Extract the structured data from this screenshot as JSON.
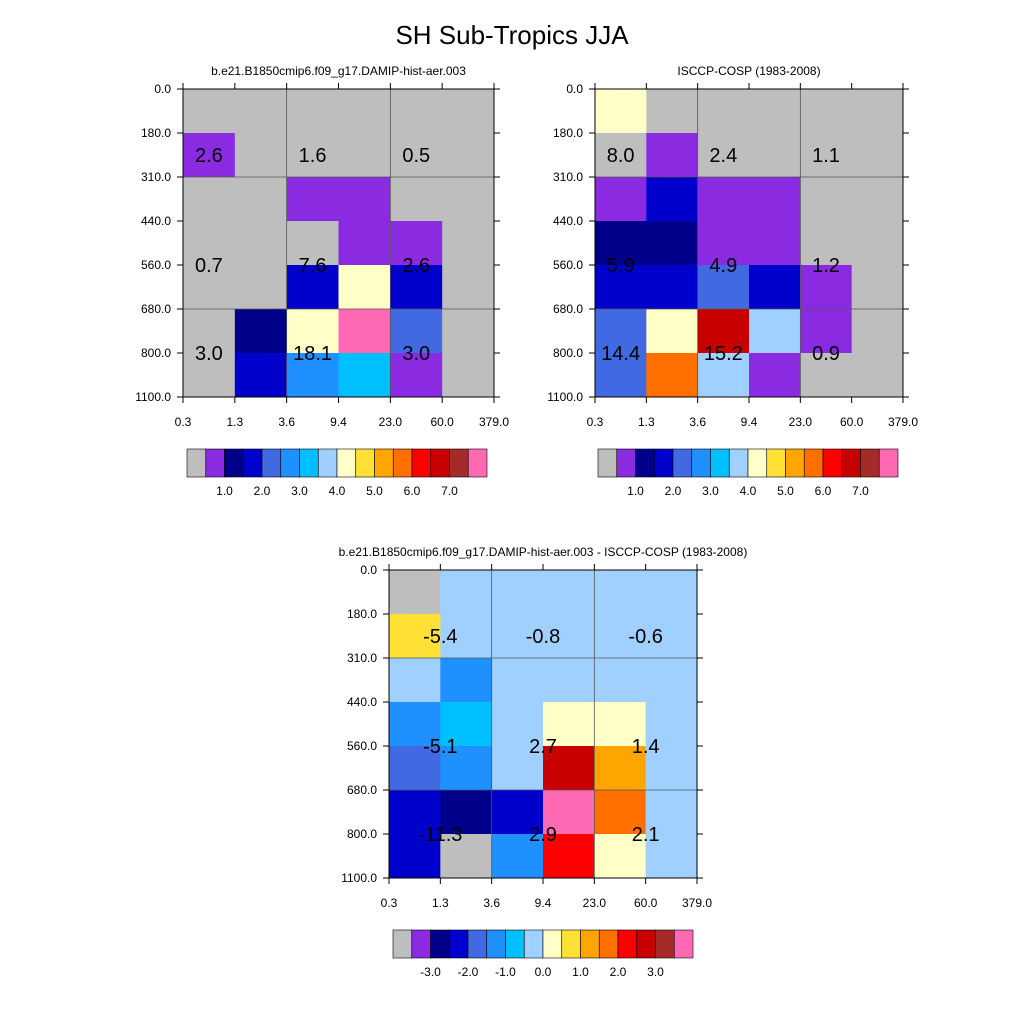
{
  "title": "SH Sub-Tropics JJA",
  "chart_data": [
    {
      "type": "heatmap",
      "title": "b.e21.B1850cmip6.f09_g17.DAMIP-hist-aer.003",
      "x_ticks": [
        "0.3",
        "1.3",
        "3.6",
        "9.4",
        "23.0",
        "60.0",
        "379.0"
      ],
      "y_ticks": [
        "0.0",
        "180.0",
        "310.0",
        "440.0",
        "560.0",
        "680.0",
        "800.0",
        "1100.0"
      ],
      "cell_colors": [
        [
          "#bebebe",
          "#bebebe",
          "#bebebe",
          "#bebebe",
          "#bebebe",
          "#bebebe"
        ],
        [
          "#8a2be2",
          "#bebebe",
          "#bebebe",
          "#bebebe",
          "#bebebe",
          "#bebebe"
        ],
        [
          "#bebebe",
          "#bebebe",
          "#8a2be2",
          "#8a2be2",
          "#bebebe",
          "#bebebe"
        ],
        [
          "#bebebe",
          "#bebebe",
          "#bebebe",
          "#8a2be2",
          "#8a2be2",
          "#bebebe"
        ],
        [
          "#bebebe",
          "#bebebe",
          "#0000cd",
          "#ffffc8",
          "#0000cd",
          "#bebebe"
        ],
        [
          "#bebebe",
          "#00008b",
          "#ffffc8",
          "#ff69b4",
          "#4169e1",
          "#bebebe"
        ],
        [
          "#bebebe",
          "#0000cd",
          "#1e90ff",
          "#00bfff",
          "#8a2be2",
          "#bebebe"
        ]
      ],
      "labels": [
        {
          "value": "2.6",
          "col": 0.5,
          "row": 1.5
        },
        {
          "value": "1.6",
          "col": 2.5,
          "row": 1.5
        },
        {
          "value": "0.5",
          "col": 4.5,
          "row": 1.5
        },
        {
          "value": "0.7",
          "col": 0.5,
          "row": 4.0
        },
        {
          "value": "7.6",
          "col": 2.5,
          "row": 4.0
        },
        {
          "value": "2.6",
          "col": 4.5,
          "row": 4.0
        },
        {
          "value": "3.0",
          "col": 0.5,
          "row": 6.0
        },
        {
          "value": "18.1",
          "col": 2.5,
          "row": 6.0
        },
        {
          "value": "3.0",
          "col": 4.5,
          "row": 6.0
        }
      ],
      "colorbar": {
        "colors": [
          "#bebebe",
          "#8a2be2",
          "#00008b",
          "#0000cd",
          "#4169e1",
          "#1e90ff",
          "#00bfff",
          "#a0d0ff",
          "#ffffc8",
          "#ffe135",
          "#ffa500",
          "#ff6f00",
          "#ff0000",
          "#c80000",
          "#a52a2a",
          "#ff69b4"
        ],
        "labels": [
          "1.0",
          "2.0",
          "3.0",
          "4.0",
          "5.0",
          "6.0",
          "7.0"
        ],
        "label_start": 2
      }
    },
    {
      "type": "heatmap",
      "title": "ISCCP-COSP (1983-2008)",
      "x_ticks": [
        "0.3",
        "1.3",
        "3.6",
        "9.4",
        "23.0",
        "60.0",
        "379.0"
      ],
      "y_ticks": [
        "0.0",
        "180.0",
        "310.0",
        "440.0",
        "560.0",
        "680.0",
        "800.0",
        "1100.0"
      ],
      "cell_colors": [
        [
          "#ffffc8",
          "#bebebe",
          "#bebebe",
          "#bebebe",
          "#bebebe",
          "#bebebe"
        ],
        [
          "#bebebe",
          "#8a2be2",
          "#bebebe",
          "#bebebe",
          "#bebebe",
          "#bebebe"
        ],
        [
          "#8a2be2",
          "#0000cd",
          "#8a2be2",
          "#8a2be2",
          "#bebebe",
          "#bebebe"
        ],
        [
          "#00008b",
          "#00008b",
          "#8a2be2",
          "#8a2be2",
          "#bebebe",
          "#bebebe"
        ],
        [
          "#0000cd",
          "#0000cd",
          "#4169e1",
          "#0000cd",
          "#8a2be2",
          "#bebebe"
        ],
        [
          "#4169e1",
          "#ffffc8",
          "#c80000",
          "#a0d0ff",
          "#8a2be2",
          "#bebebe"
        ],
        [
          "#4169e1",
          "#ff6f00",
          "#a0d0ff",
          "#8a2be2",
          "#bebebe",
          "#bebebe"
        ]
      ],
      "labels": [
        {
          "value": "8.0",
          "col": 0.5,
          "row": 1.5
        },
        {
          "value": "2.4",
          "col": 2.5,
          "row": 1.5
        },
        {
          "value": "1.1",
          "col": 4.5,
          "row": 1.5
        },
        {
          "value": "5.9",
          "col": 0.5,
          "row": 4.0
        },
        {
          "value": "4.9",
          "col": 2.5,
          "row": 4.0
        },
        {
          "value": "1.2",
          "col": 4.5,
          "row": 4.0
        },
        {
          "value": "14.4",
          "col": 0.5,
          "row": 6.0
        },
        {
          "value": "15.2",
          "col": 2.5,
          "row": 6.0
        },
        {
          "value": "0.9",
          "col": 4.5,
          "row": 6.0
        }
      ],
      "colorbar": {
        "colors": [
          "#bebebe",
          "#8a2be2",
          "#00008b",
          "#0000cd",
          "#4169e1",
          "#1e90ff",
          "#00bfff",
          "#a0d0ff",
          "#ffffc8",
          "#ffe135",
          "#ffa500",
          "#ff6f00",
          "#ff0000",
          "#c80000",
          "#a52a2a",
          "#ff69b4"
        ],
        "labels": [
          "1.0",
          "2.0",
          "3.0",
          "4.0",
          "5.0",
          "6.0",
          "7.0"
        ],
        "label_start": 2
      }
    },
    {
      "type": "heatmap",
      "title": "b.e21.B1850cmip6.f09_g17.DAMIP-hist-aer.003 - ISCCP-COSP (1983-2008)",
      "x_ticks": [
        "0.3",
        "1.3",
        "3.6",
        "9.4",
        "23.0",
        "60.0",
        "379.0"
      ],
      "y_ticks": [
        "0.0",
        "180.0",
        "310.0",
        "440.0",
        "560.0",
        "680.0",
        "800.0",
        "1100.0"
      ],
      "cell_colors": [
        [
          "#bebebe",
          "#a0d0ff",
          "#a0d0ff",
          "#a0d0ff",
          "#a0d0ff",
          "#a0d0ff"
        ],
        [
          "#ffe135",
          "#a0d0ff",
          "#a0d0ff",
          "#a0d0ff",
          "#a0d0ff",
          "#a0d0ff"
        ],
        [
          "#a0d0ff",
          "#1e90ff",
          "#a0d0ff",
          "#a0d0ff",
          "#a0d0ff",
          "#a0d0ff"
        ],
        [
          "#1e90ff",
          "#00bfff",
          "#a0d0ff",
          "#ffffc8",
          "#ffffc8",
          "#a0d0ff"
        ],
        [
          "#4169e1",
          "#1e90ff",
          "#a0d0ff",
          "#c80000",
          "#ffa500",
          "#a0d0ff"
        ],
        [
          "#0000cd",
          "#00008b",
          "#0000cd",
          "#ff69b4",
          "#ff6f00",
          "#a0d0ff"
        ],
        [
          "#0000cd",
          "#bebebe",
          "#1e90ff",
          "#ff0000",
          "#ffffc8",
          "#a0d0ff"
        ]
      ],
      "labels": [
        {
          "value": "-5.4",
          "col": 1.0,
          "row": 1.5
        },
        {
          "value": "-0.8",
          "col": 3.0,
          "row": 1.5
        },
        {
          "value": "-0.6",
          "col": 5.0,
          "row": 1.5
        },
        {
          "value": "-5.1",
          "col": 1.0,
          "row": 4.0
        },
        {
          "value": "2.7",
          "col": 3.0,
          "row": 4.0
        },
        {
          "value": "1.4",
          "col": 5.0,
          "row": 4.0
        },
        {
          "value": "-11.3",
          "col": 1.0,
          "row": 6.0
        },
        {
          "value": "2.9",
          "col": 3.0,
          "row": 6.0
        },
        {
          "value": "2.1",
          "col": 5.0,
          "row": 6.0
        }
      ],
      "colorbar": {
        "colors": [
          "#bebebe",
          "#8a2be2",
          "#00008b",
          "#0000cd",
          "#4169e1",
          "#1e90ff",
          "#00bfff",
          "#a0d0ff",
          "#ffffc8",
          "#ffe135",
          "#ffa500",
          "#ff6f00",
          "#ff0000",
          "#c80000",
          "#a52a2a",
          "#ff69b4"
        ],
        "labels": [
          "-3.0",
          "-2.0",
          "-1.0",
          "0.0",
          "1.0",
          "2.0",
          "3.0"
        ],
        "label_start": 2
      }
    }
  ]
}
